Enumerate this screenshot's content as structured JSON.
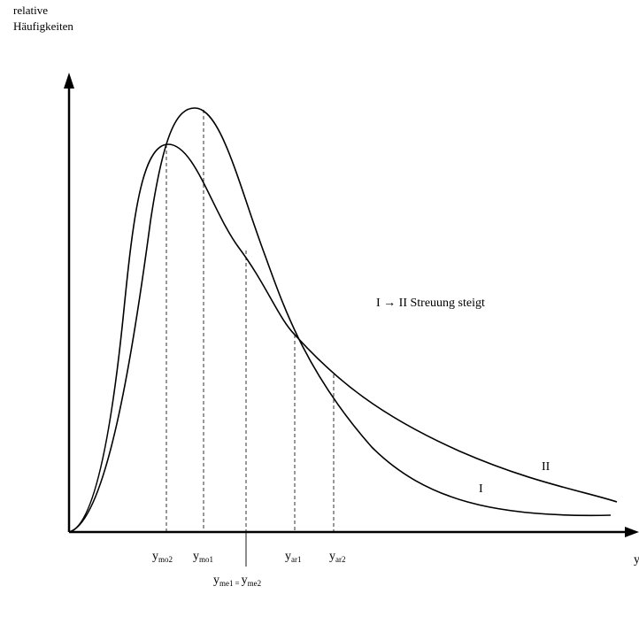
{
  "y_axis_label": [
    "relative",
    "Häufigkeiten"
  ],
  "annotation": "I → II Streuung steigt",
  "curve_labels": [
    "I",
    "II"
  ],
  "x_axis_label": "y",
  "markers": [
    {
      "base": "y",
      "sub": "mo2"
    },
    {
      "base": "y",
      "sub": "mo1"
    },
    {
      "base": "y",
      "sub": "ar1"
    },
    {
      "base": "y",
      "sub": "ar2"
    }
  ],
  "median_label": {
    "left": {
      "base": "y",
      "sub": "me1"
    },
    "eq": "=",
    "right": {
      "base": "y",
      "sub": "me2"
    }
  }
}
